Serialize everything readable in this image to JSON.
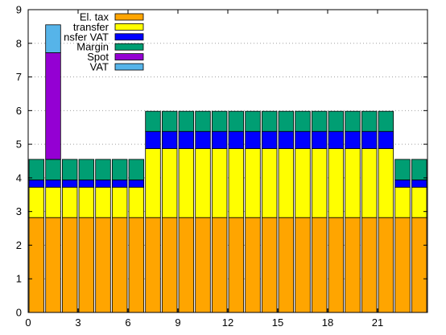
{
  "chart_data": {
    "type": "bar",
    "stacked": true,
    "title": "",
    "xlabel": "",
    "ylabel": "",
    "xlim": [
      0,
      24
    ],
    "ylim": [
      0,
      9
    ],
    "x_ticks": [
      0,
      3,
      6,
      9,
      12,
      15,
      18,
      21
    ],
    "y_ticks": [
      0,
      1,
      2,
      3,
      4,
      5,
      6,
      7,
      8,
      9
    ],
    "y_grid": true,
    "legend_position": "top-left",
    "categories": [
      0,
      1,
      2,
      3,
      4,
      5,
      6,
      7,
      8,
      9,
      10,
      11,
      12,
      13,
      14,
      15,
      16,
      17,
      18,
      19,
      20,
      21,
      22,
      23
    ],
    "series": [
      {
        "name": "El. tax",
        "color": "#ffa500",
        "values": [
          2.82,
          2.82,
          2.82,
          2.82,
          2.82,
          2.82,
          2.82,
          2.82,
          2.82,
          2.82,
          2.82,
          2.82,
          2.82,
          2.82,
          2.82,
          2.82,
          2.82,
          2.82,
          2.82,
          2.82,
          2.82,
          2.82,
          2.82,
          2.82
        ]
      },
      {
        "name": "transfer",
        "color": "#ffff00",
        "values": [
          0.9,
          0.9,
          0.9,
          0.9,
          0.9,
          0.9,
          0.9,
          2.05,
          2.05,
          2.05,
          2.05,
          2.05,
          2.05,
          2.05,
          2.05,
          2.05,
          2.05,
          2.05,
          2.05,
          2.05,
          2.05,
          2.05,
          0.9,
          0.9
        ]
      },
      {
        "name": "nsfer VAT",
        "color": "#0000ff",
        "values": [
          0.22,
          0.22,
          0.22,
          0.22,
          0.22,
          0.22,
          0.22,
          0.51,
          0.51,
          0.51,
          0.51,
          0.51,
          0.51,
          0.51,
          0.51,
          0.51,
          0.51,
          0.51,
          0.51,
          0.51,
          0.51,
          0.51,
          0.22,
          0.22
        ]
      },
      {
        "name": "Margin",
        "color": "#009e73",
        "values": [
          0.61,
          0.61,
          0.61,
          0.61,
          0.61,
          0.61,
          0.61,
          0.6,
          0.6,
          0.6,
          0.6,
          0.6,
          0.6,
          0.6,
          0.6,
          0.6,
          0.6,
          0.6,
          0.6,
          0.6,
          0.6,
          0.6,
          0.61,
          0.61
        ]
      },
      {
        "name": "Spot",
        "color": "#9400d3",
        "values": [
          0,
          3.17,
          0,
          0,
          0,
          0,
          0,
          0,
          0,
          0,
          0,
          0,
          0,
          0,
          0,
          0,
          0,
          0,
          0,
          0,
          0,
          0,
          0,
          0
        ]
      },
      {
        "name": "VAT",
        "color": "#56b4e9",
        "values": [
          0,
          0.83,
          0,
          0,
          0,
          0,
          0,
          0,
          0,
          0,
          0,
          0,
          0,
          0,
          0,
          0,
          0,
          0,
          0,
          0,
          0,
          0,
          0,
          0
        ]
      }
    ]
  }
}
